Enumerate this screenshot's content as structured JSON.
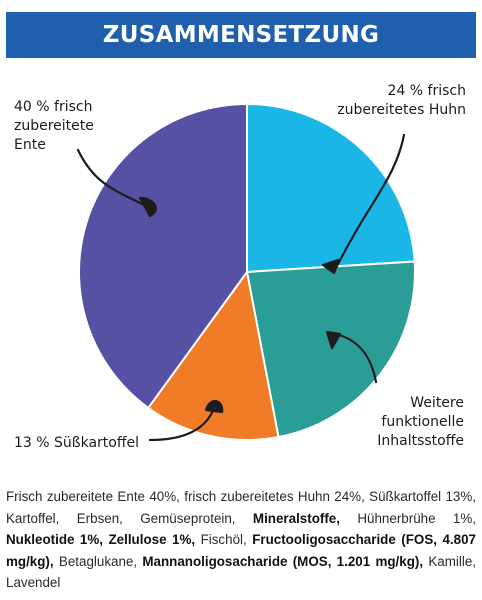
{
  "header": {
    "title": "ZUSAMMENSETZUNG"
  },
  "chart_data": {
    "type": "pie",
    "slices": [
      {
        "value": 24,
        "color": "#1ab6e6",
        "label_lines": [
          "24 % frisch",
          "zubereitetes Huhn"
        ]
      },
      {
        "value": 23,
        "color": "#2a9d96",
        "label_lines": [
          "Weitere",
          "funktionelle",
          "Inhaltsstoffe"
        ]
      },
      {
        "value": 13,
        "color": "#f07c27",
        "label_lines": [
          "13 % Süßkartoffel"
        ]
      },
      {
        "value": 40,
        "color": "#5651a3",
        "label_lines": [
          "40 % frisch",
          "zubereitete",
          "Ente"
        ]
      }
    ],
    "start_angle_deg": 0,
    "direction": "clockwise"
  },
  "ingredients": [
    {
      "text": "Frisch zubereitete Ente 40%, frisch zubereitetes Huhn 24%, Süßkartoffel 13%, Kartoffel, Erbsen, Gemüseprotein, ",
      "bold": false
    },
    {
      "text": "Mineralstoffe,",
      "bold": true
    },
    {
      "text": " Hühnerbrühe 1%, ",
      "bold": false
    },
    {
      "text": "Nukleotide 1%, Zellulose 1%,",
      "bold": true
    },
    {
      "text": " Fischöl, ",
      "bold": false
    },
    {
      "text": "Fructooligosaccharide (FOS, 4.807 mg/kg),",
      "bold": true
    },
    {
      "text": " Betaglukane, ",
      "bold": false
    },
    {
      "text": "Mannanoligosacharide (MOS, 1.201 mg/kg),",
      "bold": true
    },
    {
      "text": " Kamille, Lavendel",
      "bold": false
    }
  ]
}
